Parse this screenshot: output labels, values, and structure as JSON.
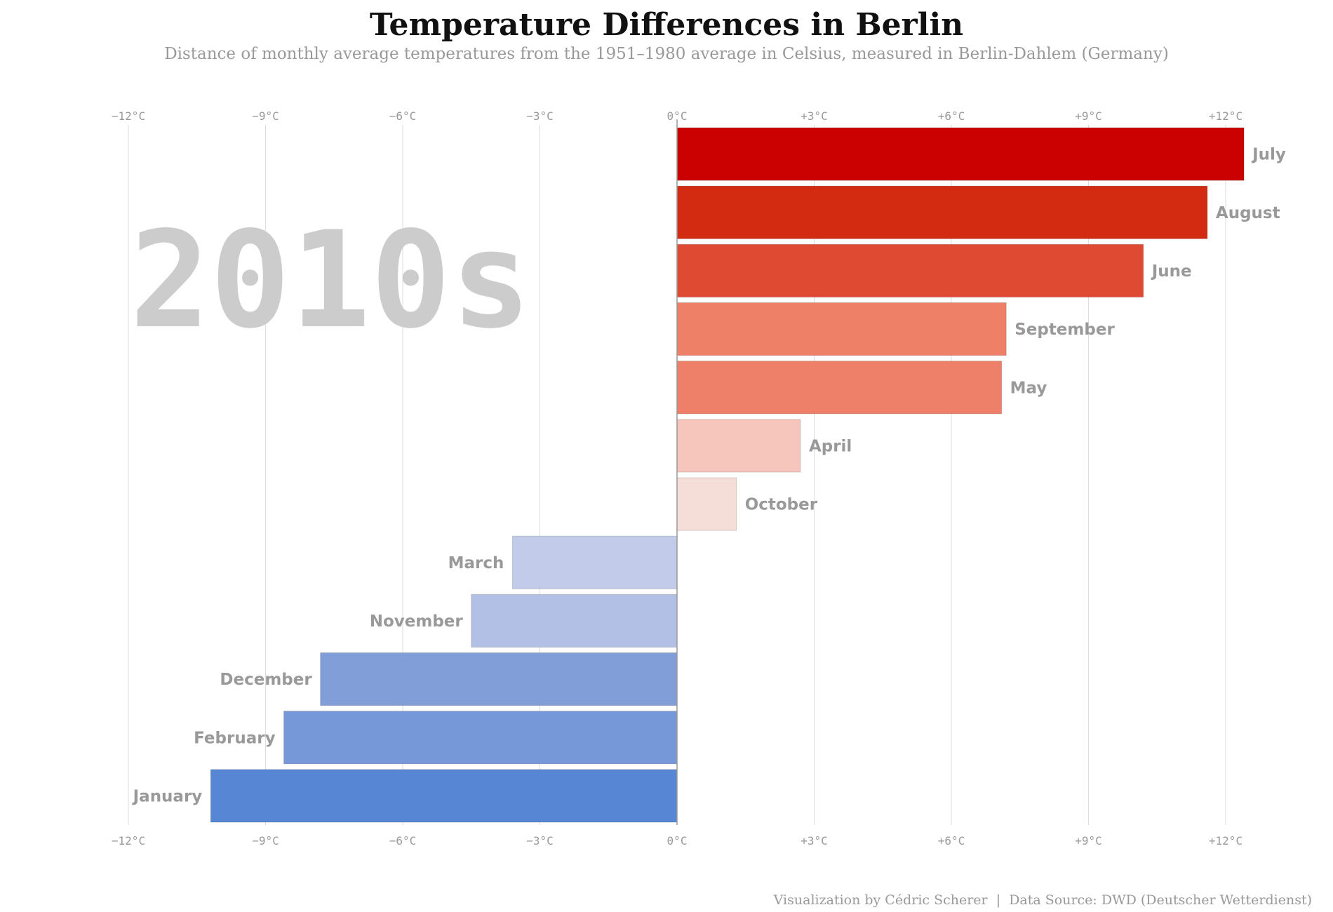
{
  "title": "Temperature Differences in Berlin",
  "subtitle": "Distance of monthly average temperatures from the 1951–1980 average in Celsius, measured in Berlin-Dahlem (Germany)",
  "caption": "Visualization by Cédric Scherer  |  Data Source: DWD (Deutscher Wetterdienst)",
  "decade": "2010s",
  "chart_data": {
    "type": "bar",
    "orientation": "horizontal",
    "categories": [
      "July",
      "August",
      "June",
      "September",
      "May",
      "April",
      "October",
      "March",
      "November",
      "December",
      "February",
      "January"
    ],
    "values": [
      12.4,
      11.6,
      10.2,
      7.2,
      7.1,
      2.7,
      1.3,
      -3.6,
      -4.5,
      -7.8,
      -8.6,
      -10.2
    ],
    "colors": [
      "#cb0000",
      "#d32a12",
      "#df4a32",
      "#ee8068",
      "#ee806a",
      "#f6c5bb",
      "#f5ddd8",
      "#c2cbe9",
      "#b3c0e5",
      "#829ed9",
      "#7798d8",
      "#5787d4"
    ],
    "xlim": [
      -12,
      12
    ],
    "xticks": [
      -12,
      -9,
      -6,
      -3,
      0,
      3,
      6,
      9,
      12
    ],
    "xtick_labels": [
      "−12°C",
      "−9°C",
      "−6°C",
      "−3°C",
      "0°C",
      "+3°C",
      "+6°C",
      "+9°C",
      "+12°C"
    ],
    "grid": true,
    "xlabel": "",
    "ylabel": ""
  }
}
